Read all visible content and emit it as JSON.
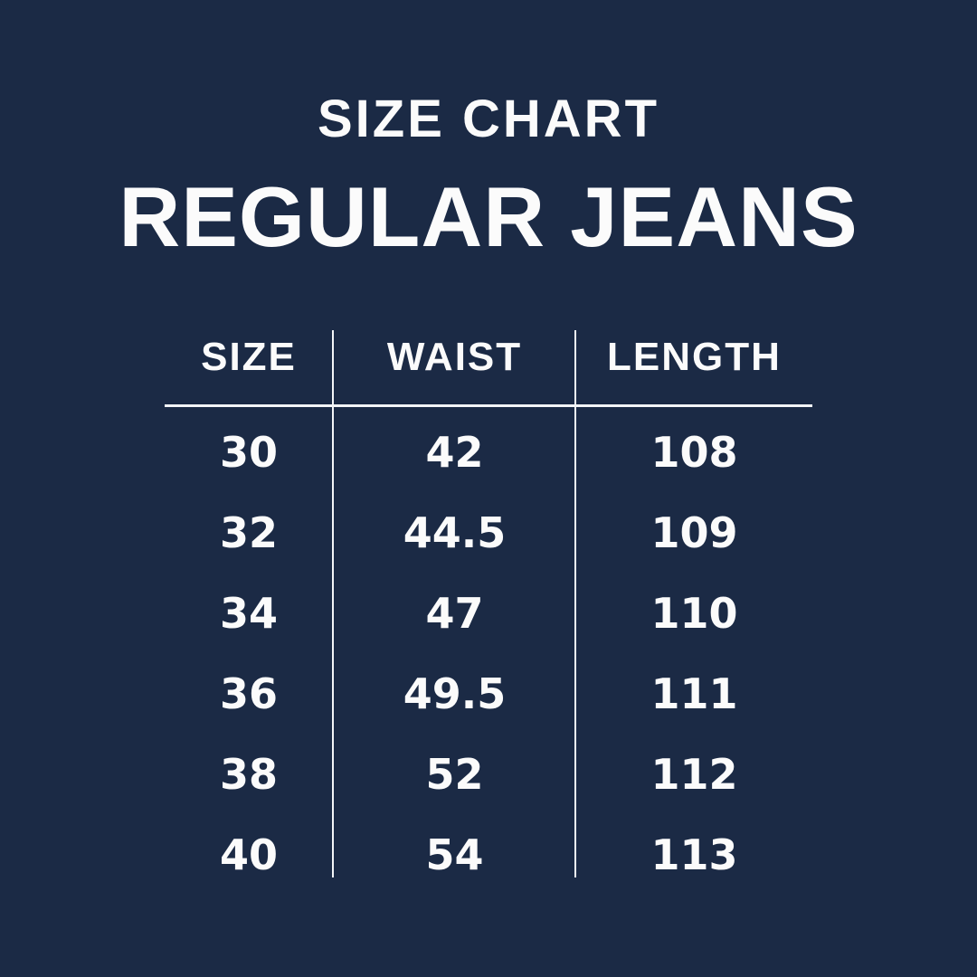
{
  "colors": {
    "background": "#1b2a45",
    "text": "#fbfbfb",
    "divider_line": "#f3f5f8"
  },
  "chart_data": {
    "type": "table",
    "title": "SIZE CHART",
    "subtitle": "REGULAR JEANS",
    "columns": [
      "SIZE",
      "WAIST",
      "LENGTH"
    ],
    "rows": [
      [
        "30",
        "42",
        "108"
      ],
      [
        "32",
        "44.5",
        "109"
      ],
      [
        "34",
        "47",
        "110"
      ],
      [
        "36",
        "49.5",
        "111"
      ],
      [
        "38",
        "52",
        "112"
      ],
      [
        "40",
        "54",
        "113"
      ]
    ],
    "layout_hints": {
      "grid": "vertical dividers between columns, single horizontal rule under header row",
      "alignment": "all cells centered"
    }
  }
}
